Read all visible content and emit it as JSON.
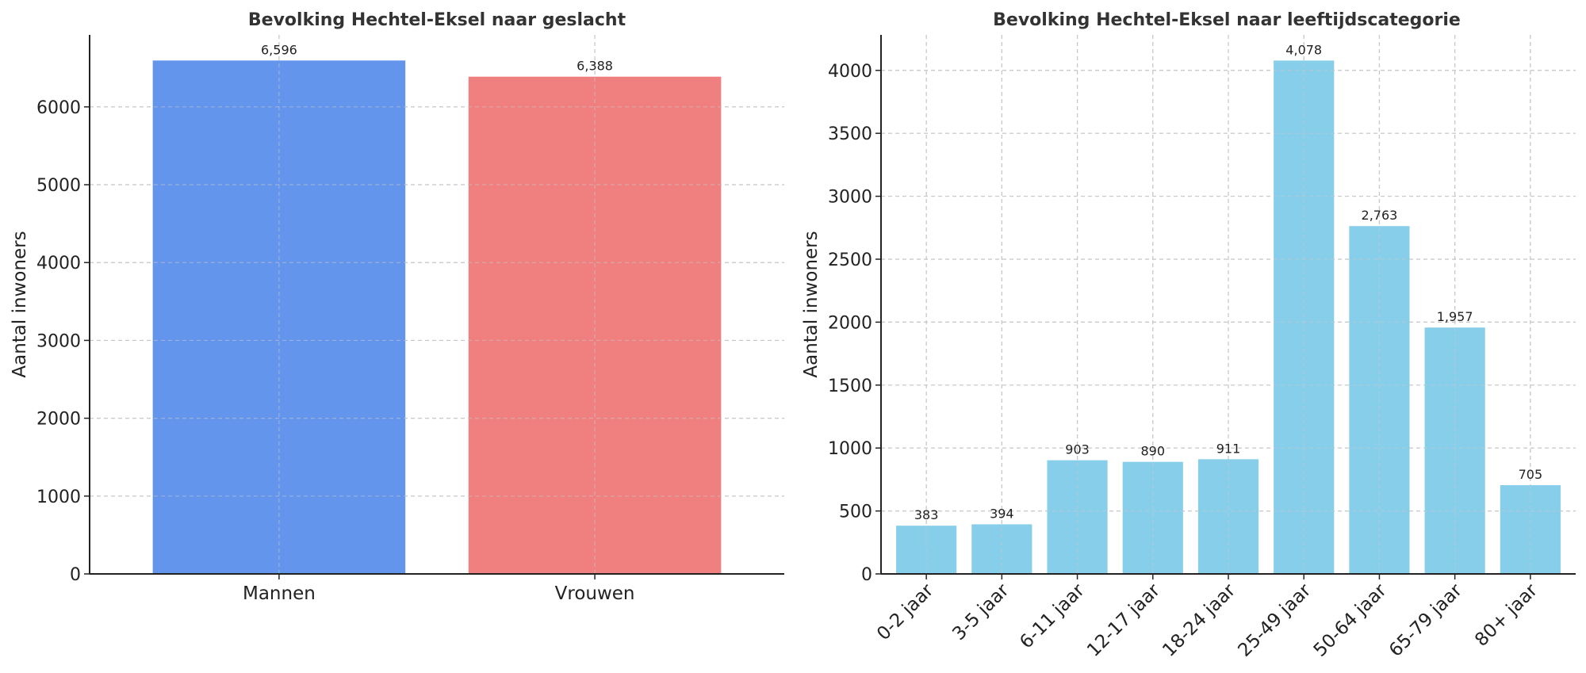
{
  "chart_data": [
    {
      "type": "bar",
      "title": "Bevolking Hechtel-Eksel naar geslacht",
      "xlabel": "",
      "ylabel": "Aantal inwoners",
      "categories": [
        "Mannen",
        "Vrouwen"
      ],
      "values": [
        6596,
        6388
      ],
      "data_labels": [
        "6,596",
        "6,388"
      ],
      "colors": [
        "#6495ED",
        "#F08080"
      ],
      "ylim": [
        0,
        6925
      ],
      "yticks": [
        0,
        1000,
        2000,
        3000,
        4000,
        5000,
        6000
      ],
      "grid": true,
      "legend": "none"
    },
    {
      "type": "bar",
      "title": "Bevolking Hechtel-Eksel naar leeftijdscategorie",
      "xlabel": "",
      "ylabel": "Aantal inwoners",
      "categories": [
        "0-2 jaar",
        "3-5 jaar",
        "6-11 jaar",
        "12-17 jaar",
        "18-24 jaar",
        "25-49 jaar",
        "50-64 jaar",
        "65-79 jaar",
        "80+ jaar"
      ],
      "values": [
        383,
        394,
        903,
        890,
        911,
        4078,
        2763,
        1957,
        705
      ],
      "data_labels": [
        "383",
        "394",
        "903",
        "890",
        "911",
        "4,078",
        "2,763",
        "1,957",
        "705"
      ],
      "colors": [
        "#87CEEB"
      ],
      "ylim": [
        0,
        4282
      ],
      "yticks": [
        0,
        500,
        1000,
        1500,
        2000,
        2500,
        3000,
        3500,
        4000
      ],
      "grid": true,
      "legend": "none"
    }
  ]
}
